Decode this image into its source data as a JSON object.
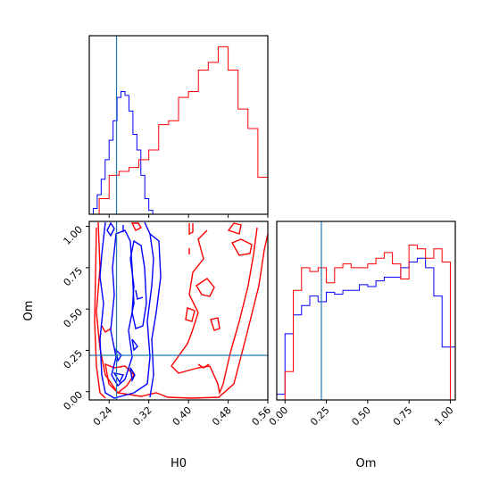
{
  "chart_data": [
    {
      "type": "histogram",
      "panel": "H0 marginal",
      "xlim": [
        0.2,
        0.56
      ],
      "truth": 0.255,
      "series": [
        {
          "color": "#0000ff",
          "bins": [
            0.2,
            0.208,
            0.216,
            0.224,
            0.232,
            0.24,
            0.248,
            0.256,
            0.264,
            0.272,
            0.28,
            0.288,
            0.296,
            0.304,
            0.312,
            0.32,
            0.328,
            0.336
          ],
          "counts": [
            0,
            3,
            10,
            18,
            28,
            38,
            48,
            60,
            63,
            61,
            53,
            41,
            33,
            20,
            8,
            2,
            0
          ]
        },
        {
          "color": "#ff0000",
          "bins": [
            0.2,
            0.22,
            0.24,
            0.26,
            0.28,
            0.3,
            0.32,
            0.34,
            0.36,
            0.38,
            0.4,
            0.42,
            0.44,
            0.46,
            0.48,
            0.5,
            0.52,
            0.54,
            0.56
          ],
          "counts": [
            0,
            8,
            20,
            22,
            24,
            28,
            33,
            46,
            48,
            60,
            63,
            74,
            78,
            86,
            74,
            54,
            44,
            19
          ]
        }
      ]
    },
    {
      "type": "contour",
      "panel": "H0 vs Om",
      "xlabel": "H0",
      "ylabel": "Om",
      "xlim": [
        0.2,
        0.56
      ],
      "ylim": [
        -0.05,
        1.03
      ],
      "xticks": [
        "0.24",
        "0.32",
        "0.40",
        "0.48",
        "0.56"
      ],
      "yticks": [
        "0.00",
        "0.25",
        "0.50",
        "0.75",
        "1.00"
      ],
      "truth": {
        "H0": 0.255,
        "Om": 0.22
      }
    },
    {
      "type": "histogram",
      "panel": "Om marginal",
      "xlabel": "Om",
      "xlim": [
        -0.05,
        1.03
      ],
      "truth": 0.22,
      "xticks": [
        "0.00",
        "0.25",
        "0.50",
        "0.75",
        "1.00"
      ],
      "series": [
        {
          "color": "#0000ff",
          "bins": [
            -0.05,
            0.0,
            0.05,
            0.1,
            0.15,
            0.2,
            0.25,
            0.3,
            0.35,
            0.4,
            0.45,
            0.5,
            0.55,
            0.6,
            0.65,
            0.7,
            0.75,
            0.8,
            0.85,
            0.9,
            0.95,
            1.0,
            1.03
          ],
          "counts": [
            3,
            35,
            45,
            50,
            55,
            52,
            57,
            56,
            58,
            58,
            61,
            60,
            63,
            65,
            65,
            70,
            73,
            75,
            70,
            55,
            28,
            28
          ]
        },
        {
          "color": "#ff0000",
          "bins": [
            -0.05,
            0.0,
            0.05,
            0.1,
            0.15,
            0.2,
            0.25,
            0.3,
            0.35,
            0.4,
            0.45,
            0.5,
            0.55,
            0.6,
            0.65,
            0.7,
            0.75,
            0.8,
            0.85,
            0.9,
            0.95,
            1.0
          ],
          "counts": [
            0,
            15,
            58,
            70,
            68,
            70,
            62,
            70,
            72,
            70,
            70,
            72,
            75,
            78,
            72,
            64,
            82,
            80,
            75,
            80,
            73
          ]
        }
      ]
    }
  ]
}
